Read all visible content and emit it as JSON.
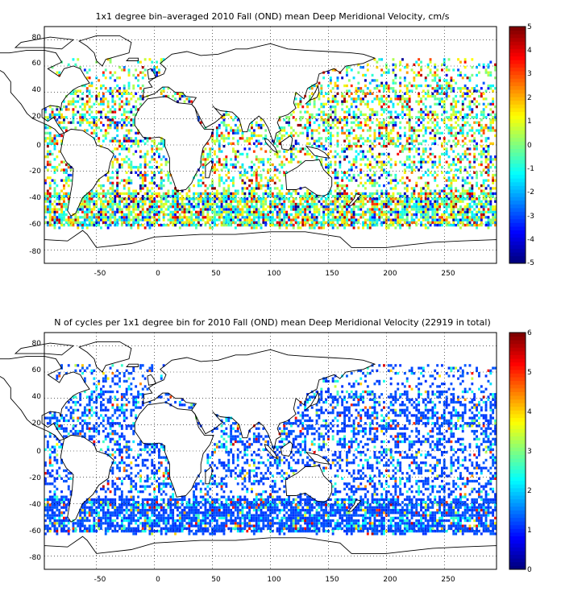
{
  "plots": [
    {
      "title": "1x1 degree bin–averaged 2010 Fall (OND) mean Deep Meridional Velocity, cm/s",
      "x_ticks": [
        "-50",
        "0",
        "50",
        "100",
        "150",
        "200",
        "250"
      ],
      "y_ticks": [
        "80",
        "60",
        "40",
        "20",
        "0",
        "-20",
        "-40",
        "-60",
        "-80"
      ],
      "colorbar_ticks": [
        "5",
        "4",
        "3",
        "2",
        "1",
        "0",
        "-1",
        "-2",
        "-3",
        "-4",
        "-5"
      ],
      "colorbar_range": [
        -5,
        5
      ],
      "colormap": "jet"
    },
    {
      "title": "N of cycles per 1x1 degree bin for 2010 Fall (OND) mean Deep Meridional Velocity (22919 in total)",
      "x_ticks": [
        "-50",
        "0",
        "50",
        "100",
        "150",
        "200",
        "250"
      ],
      "y_ticks": [
        "80",
        "60",
        "40",
        "20",
        "0",
        "-20",
        "-40",
        "-60",
        "-80"
      ],
      "colorbar_ticks": [
        "6",
        "5",
        "4",
        "3",
        "2",
        "1",
        "0"
      ],
      "colorbar_range": [
        0,
        6
      ],
      "colormap": "jet"
    }
  ],
  "map_extent": {
    "lon": [
      -95,
      295
    ],
    "lat": [
      -90,
      90
    ]
  },
  "grid": "dotted",
  "coastline_color": "#000000"
}
